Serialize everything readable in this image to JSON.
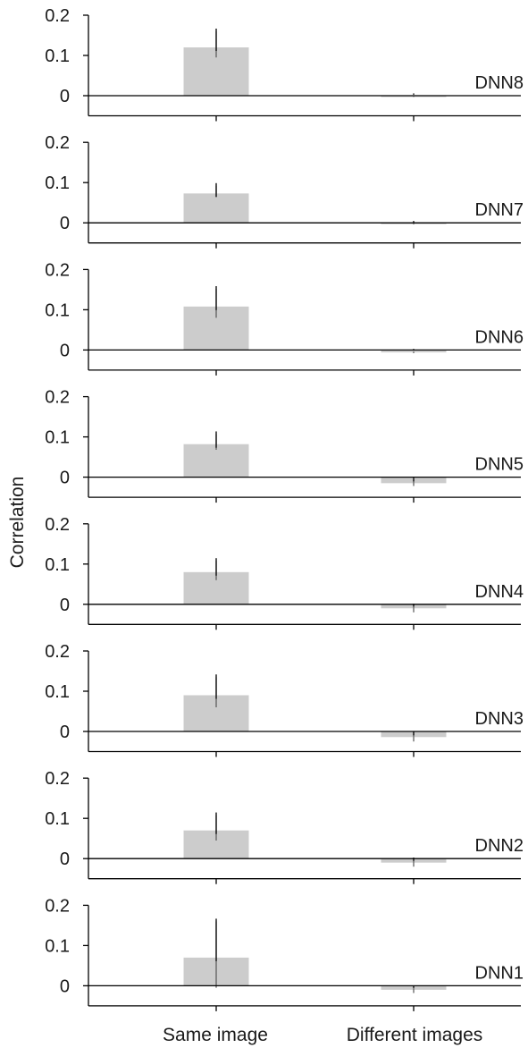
{
  "chart_data": {
    "type": "bar",
    "ylabel": "Correlation",
    "categories": [
      "Same image",
      "Different images"
    ],
    "ylim": [
      -0.05,
      0.2
    ],
    "yticks": [
      0,
      0.1,
      0.2
    ],
    "ytick_labels": [
      "0",
      "0.1",
      "0.2"
    ],
    "bar_color": "#cccccc",
    "panels": [
      {
        "label": "DNN8",
        "values": [
          0.12,
          -0.002
        ],
        "error_low": [
          0.095,
          -0.003
        ],
        "error_high": [
          0.16,
          -0.001
        ]
      },
      {
        "label": "DNN7",
        "values": [
          0.073,
          -0.003
        ],
        "error_low": [
          0.065,
          -0.004
        ],
        "error_high": [
          0.092,
          -0.002
        ]
      },
      {
        "label": "DNN6",
        "values": [
          0.108,
          -0.006
        ],
        "error_low": [
          0.08,
          -0.008
        ],
        "error_high": [
          0.152,
          -0.004
        ]
      },
      {
        "label": "DNN5",
        "values": [
          0.082,
          -0.015
        ],
        "error_low": [
          0.068,
          -0.022
        ],
        "error_high": [
          0.107,
          -0.008
        ]
      },
      {
        "label": "DNN4",
        "values": [
          0.08,
          -0.01
        ],
        "error_low": [
          0.06,
          -0.02
        ],
        "error_high": [
          0.108,
          -0.005
        ]
      },
      {
        "label": "DNN3",
        "values": [
          0.09,
          -0.014
        ],
        "error_low": [
          0.06,
          -0.025
        ],
        "error_high": [
          0.135,
          -0.006
        ]
      },
      {
        "label": "DNN2",
        "values": [
          0.07,
          -0.01
        ],
        "error_low": [
          0.045,
          -0.02
        ],
        "error_high": [
          0.108,
          -0.004
        ]
      },
      {
        "label": "DNN1",
        "values": [
          0.07,
          -0.01
        ],
        "error_low": [
          -0.005,
          -0.018
        ],
        "error_high": [
          0.16,
          -0.006
        ]
      }
    ]
  }
}
